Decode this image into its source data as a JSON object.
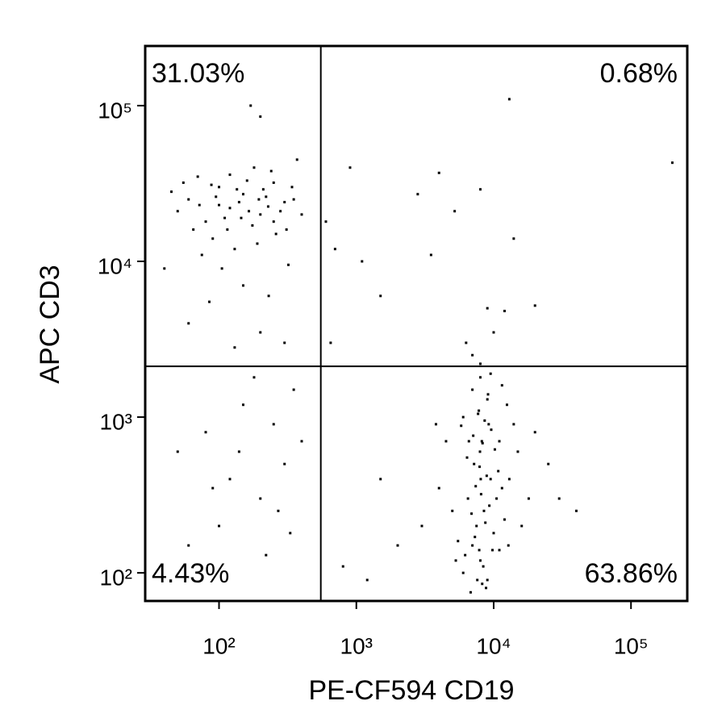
{
  "chart_data": {
    "type": "scatter",
    "xlabel": "PE-CF594 CD19",
    "ylabel": "APC CD3",
    "xscale": "log",
    "yscale": "log",
    "xlim": [
      29,
      257000
    ],
    "ylim": [
      66,
      241500
    ],
    "xticks": [
      {
        "value": 100,
        "label": "10²"
      },
      {
        "value": 1000,
        "label": "10³"
      },
      {
        "value": 10000,
        "label": "10⁴"
      },
      {
        "value": 100000,
        "label": "10⁵"
      }
    ],
    "yticks": [
      {
        "value": 100,
        "label": "10²"
      },
      {
        "value": 1000,
        "label": "10³"
      },
      {
        "value": 10000,
        "label": "10⁴"
      },
      {
        "value": 100000,
        "label": "10⁵"
      }
    ],
    "gates": {
      "x": 551,
      "y": 2120
    },
    "quadrant_values": [
      31.03,
      0.68,
      4.43,
      63.86
    ],
    "quadrant_value_labels": [
      "31.03%",
      "0.68%",
      "4.43%",
      "63.86%"
    ],
    "color": "#000000",
    "x": [
      60,
      80,
      100,
      120,
      150,
      200,
      250,
      90,
      70,
      180,
      300,
      130,
      110,
      220,
      160,
      50,
      45,
      75,
      260,
      340,
      140,
      95,
      175,
      210,
      120,
      65,
      280,
      55,
      190,
      240,
      105,
      150,
      85,
      230,
      320,
      400,
      370,
      40,
      60,
      200,
      130,
      300,
      170,
      200,
      100,
      135,
      165,
      195,
      88,
      250,
      310,
      350,
      72,
      115,
      145,
      228,
      600,
      700,
      1100,
      2800,
      4000,
      5200,
      13000,
      9000,
      12000,
      20000,
      1500,
      3500,
      8000,
      200000,
      900,
      650,
      10000,
      14000,
      50,
      80,
      120,
      150,
      200,
      250,
      300,
      350,
      100,
      60,
      400,
      180,
      90,
      270,
      220,
      140,
      330,
      6000,
      7000,
      8000,
      9000,
      7500,
      8500,
      6500,
      10000,
      11000,
      9500,
      7200,
      8200,
      9200,
      7800,
      8800,
      6800,
      10500,
      12000,
      5500,
      5000,
      13000,
      15000,
      18000,
      20000,
      25000,
      4000,
      3000,
      7000,
      8000,
      9000,
      6000,
      11000,
      12500,
      14000,
      7600,
      8400,
      6200,
      9800,
      7300,
      8700,
      6900,
      9300,
      8100,
      7400,
      8900,
      7900,
      6400,
      10200,
      8300,
      7100,
      9600,
      5800,
      8600,
      7700,
      9100,
      6600,
      10800,
      11500,
      5300,
      12800,
      16000,
      2000,
      1500,
      800,
      1200,
      30000,
      40000,
      4500,
      3800,
      7000,
      8000,
      9500,
      6300,
      11500,
      7950,
      8050,
      8250,
      7850
    ],
    "values": [
      25000,
      18000,
      30000,
      22000,
      27000,
      20000,
      32000,
      14000,
      35000,
      40000,
      24000,
      12000,
      19000,
      26000,
      33000,
      21000,
      28000,
      11000,
      15000,
      30000,
      24000,
      26000,
      17000,
      29000,
      36000,
      16000,
      21000,
      32000,
      13000,
      38000,
      9000,
      7000,
      5500,
      6000,
      9500,
      20000,
      45000,
      9000,
      4000,
      3500,
      2800,
      3000,
      100000,
      85000,
      23000,
      29000,
      21000,
      25000,
      31000,
      18000,
      16000,
      25000,
      23000,
      16000,
      19000,
      22500,
      18000,
      12000,
      10000,
      27000,
      37000,
      21000,
      110000,
      5000,
      4800,
      5200,
      6000,
      11000,
      29000,
      43000,
      40000,
      3000,
      3500,
      14000,
      600,
      800,
      400,
      1200,
      300,
      900,
      500,
      1500,
      200,
      150,
      700,
      1800,
      350,
      250,
      130,
      600,
      180,
      100,
      150,
      120,
      90,
      200,
      250,
      300,
      180,
      140,
      400,
      500,
      700,
      900,
      1100,
      80,
      75,
      300,
      220,
      160,
      250,
      400,
      600,
      300,
      800,
      500,
      350,
      200,
      1500,
      1800,
      1300,
      1000,
      700,
      1200,
      900,
      90,
      110,
      130,
      140,
      170,
      210,
      240,
      270,
      320,
      360,
      420,
      480,
      550,
      620,
      680,
      760,
      830,
      880,
      950,
      1050,
      1400,
      700,
      450,
      350,
      120,
      150,
      200,
      150,
      400,
      110,
      90,
      300,
      250,
      700,
      900,
      2500,
      2200,
      1900,
      3000,
      1600,
      600,
      400,
      85,
      140
    ]
  }
}
